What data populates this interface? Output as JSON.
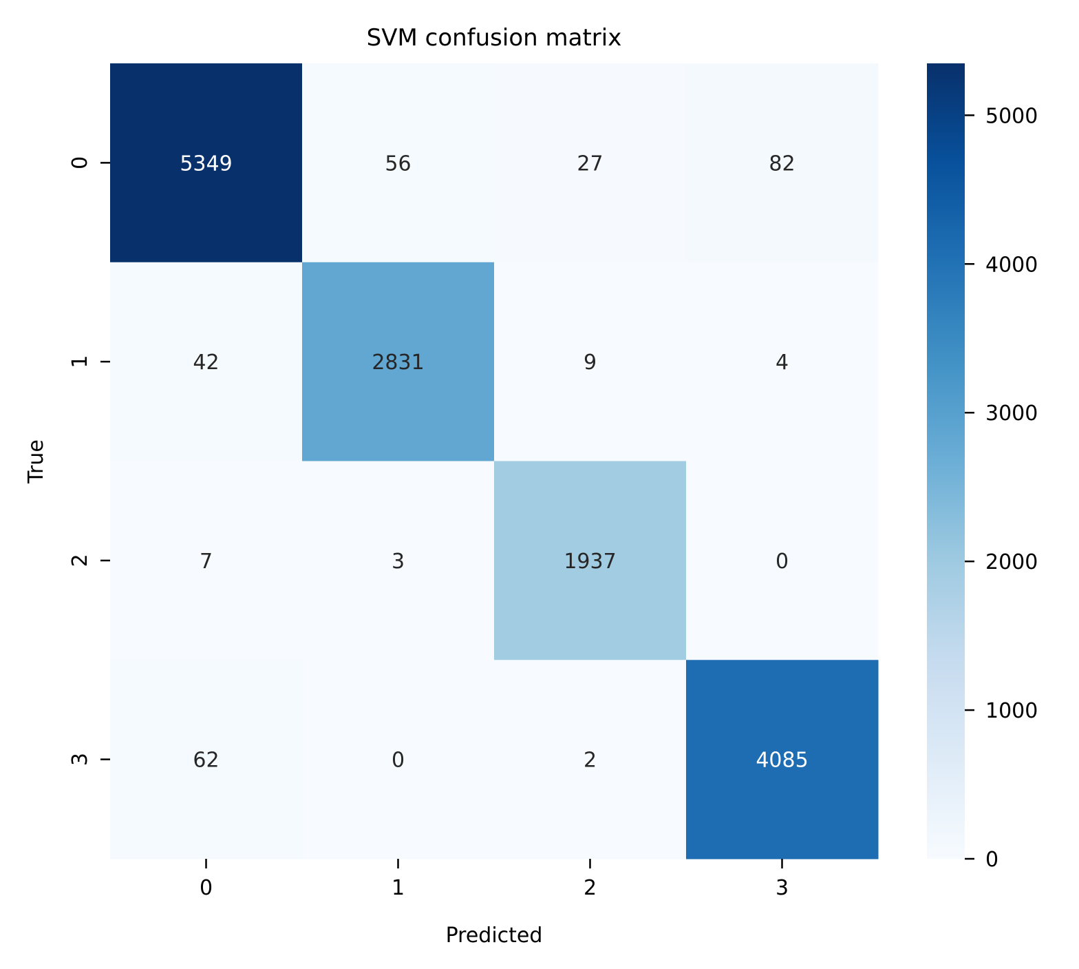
{
  "chart_data": {
    "type": "heatmap",
    "title": "SVM confusion matrix",
    "xlabel": "Predicted",
    "ylabel": "True",
    "x_categories": [
      "0",
      "1",
      "2",
      "3"
    ],
    "y_categories": [
      "0",
      "1",
      "2",
      "3"
    ],
    "values": [
      [
        5349,
        56,
        27,
        82
      ],
      [
        42,
        2831,
        9,
        4
      ],
      [
        7,
        3,
        1937,
        0
      ],
      [
        62,
        0,
        2,
        4085
      ]
    ],
    "colormap": "Blues",
    "colorbar": {
      "range": [
        0,
        5349
      ],
      "ticks": [
        0,
        1000,
        2000,
        3000,
        4000,
        5000
      ]
    },
    "annotation_colors": {
      "light": "#ffffff",
      "dark": "#262626"
    }
  }
}
